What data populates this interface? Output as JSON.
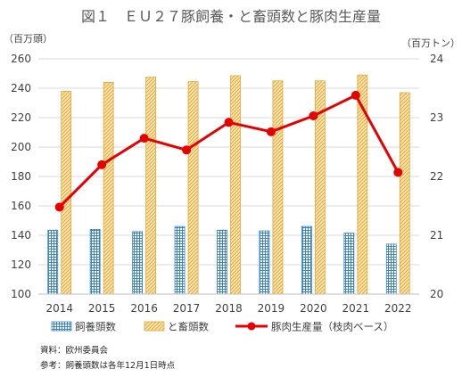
{
  "chart_data": {
    "type": "bar",
    "title": "図１　ＥＵ２７豚飼養・と畜頭数と豚肉生産量",
    "left_unit": "（百万頭）",
    "right_unit": "（百万トン）",
    "categories": [
      "2014",
      "2015",
      "2016",
      "2017",
      "2018",
      "2019",
      "2020",
      "2021",
      "2022"
    ],
    "ylim": [
      100,
      260
    ],
    "yticks": [
      "100",
      "120",
      "140",
      "160",
      "180",
      "200",
      "220",
      "240",
      "260"
    ],
    "y2lim": [
      20,
      24
    ],
    "y2ticks": [
      "20",
      "21",
      "22",
      "23",
      "24"
    ],
    "grid": true,
    "legend_position": "bottom",
    "series": [
      {
        "name": "飼養頭数",
        "kind": "bar",
        "axis": "left",
        "color": "#4a90c8",
        "values": [
          143.5,
          144,
          142.5,
          146,
          143.5,
          143,
          146,
          141.5,
          134
        ]
      },
      {
        "name": "と畜頭数",
        "kind": "bar",
        "axis": "left",
        "color": "#f3c86b",
        "values": [
          238,
          244,
          247.5,
          244.5,
          248.5,
          245,
          245,
          249,
          237
        ]
      },
      {
        "name": "豚肉生産量（枝肉ベース）",
        "kind": "line",
        "axis": "right",
        "color": "#e60000",
        "values": [
          21.48,
          22.2,
          22.65,
          22.45,
          22.92,
          22.76,
          23.03,
          23.38,
          22.07
        ]
      }
    ]
  },
  "notes": {
    "source": "資料：欧州委員会",
    "reference": "参考：飼養頭数は各年12月1日時点"
  }
}
